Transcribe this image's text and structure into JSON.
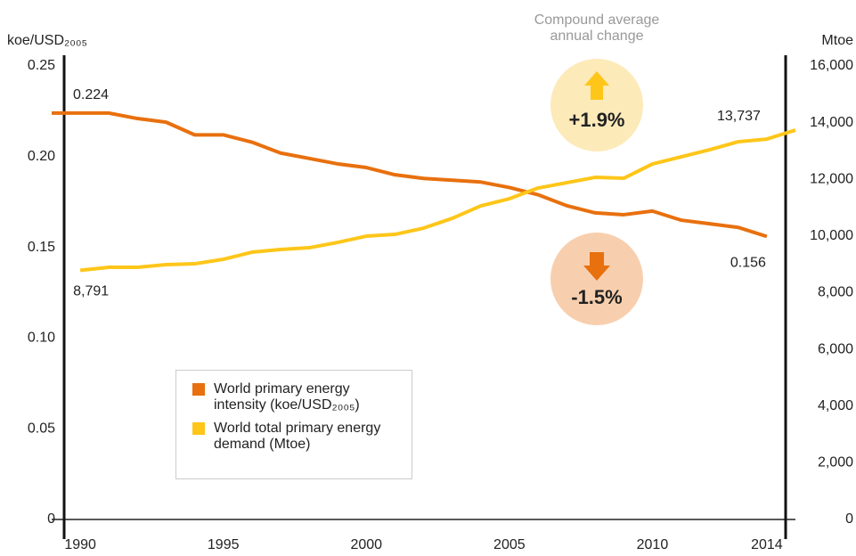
{
  "chart_data": {
    "type": "line",
    "y_label": "koe/USD₂₀₀₅",
    "y2_label": "Mtoe",
    "annotation_title": "Compound average annual change",
    "annotations": [
      "+1.9%",
      "-1.5%"
    ],
    "xlim": [
      1989,
      2015
    ],
    "xticks": [
      1990,
      1995,
      2000,
      2005,
      2010,
      2014
    ],
    "ylim": [
      0,
      0.25
    ],
    "yticks": [
      0,
      0.05,
      {
        "value": 0.1,
        "label": "0.10"
      },
      0.15,
      {
        "value": 0.2,
        "label": "0.20"
      },
      0.25
    ],
    "y2lim": [
      0,
      16000
    ],
    "y2ticks": [
      0,
      {
        "value": 2000,
        "label": "2,000"
      },
      {
        "value": 4000,
        "label": "4,000"
      },
      {
        "value": 6000,
        "label": "6,000"
      },
      {
        "value": 8000,
        "label": "8,000"
      },
      {
        "value": 10000,
        "label": "10,000"
      },
      {
        "value": 12000,
        "label": "12,000"
      },
      {
        "value": 14000,
        "label": "14,000"
      },
      {
        "value": 16000,
        "label": "16,000"
      }
    ],
    "series": [
      {
        "name": "World primary energy intensity (koe/USD₂₀₀₅)",
        "color": "#e8700e",
        "axis": "y",
        "x": [
          1989,
          1990,
          1991,
          1992,
          1993,
          1994,
          1995,
          1996,
          1997,
          1998,
          1999,
          2000,
          2001,
          2002,
          2003,
          2004,
          2005,
          2006,
          2007,
          2008,
          2009,
          2010,
          2011,
          2012,
          2013,
          2014
        ],
        "values": [
          0.224,
          0.224,
          0.224,
          0.221,
          0.219,
          0.212,
          0.212,
          0.208,
          0.202,
          0.199,
          0.196,
          0.194,
          0.19,
          0.188,
          0.187,
          0.186,
          0.183,
          0.179,
          0.173,
          0.169,
          0.168,
          0.17,
          0.165,
          0.163,
          0.161,
          0.156
        ],
        "value_labels": [
          "0.224",
          null,
          null,
          null,
          null,
          null,
          null,
          null,
          null,
          null,
          null,
          null,
          null,
          null,
          null,
          null,
          null,
          null,
          null,
          null,
          null,
          null,
          null,
          null,
          null,
          "0.156"
        ]
      },
      {
        "name": "World total primary energy demand (Mtoe)",
        "color": "#fec619",
        "axis": "y2",
        "x": [
          1990,
          1991,
          1992,
          1993,
          1994,
          1995,
          1996,
          1997,
          1998,
          1999,
          2000,
          2001,
          2002,
          2003,
          2004,
          2005,
          2006,
          2007,
          2008,
          2009,
          2010,
          2011,
          2012,
          2013,
          2014,
          2015
        ],
        "values": [
          8791,
          8895,
          8895,
          8989,
          9020,
          9178,
          9429,
          9523,
          9586,
          9775,
          9995,
          10058,
          10278,
          10623,
          11064,
          11315,
          11692,
          11881,
          12069,
          12038,
          12541,
          12792,
          13043,
          13326,
          13420,
          13737
        ],
        "value_labels": [
          "8,791",
          null,
          null,
          null,
          null,
          null,
          null,
          null,
          null,
          null,
          null,
          null,
          null,
          null,
          null,
          null,
          null,
          null,
          null,
          null,
          null,
          null,
          null,
          null,
          null,
          "13,737"
        ]
      }
    ]
  }
}
